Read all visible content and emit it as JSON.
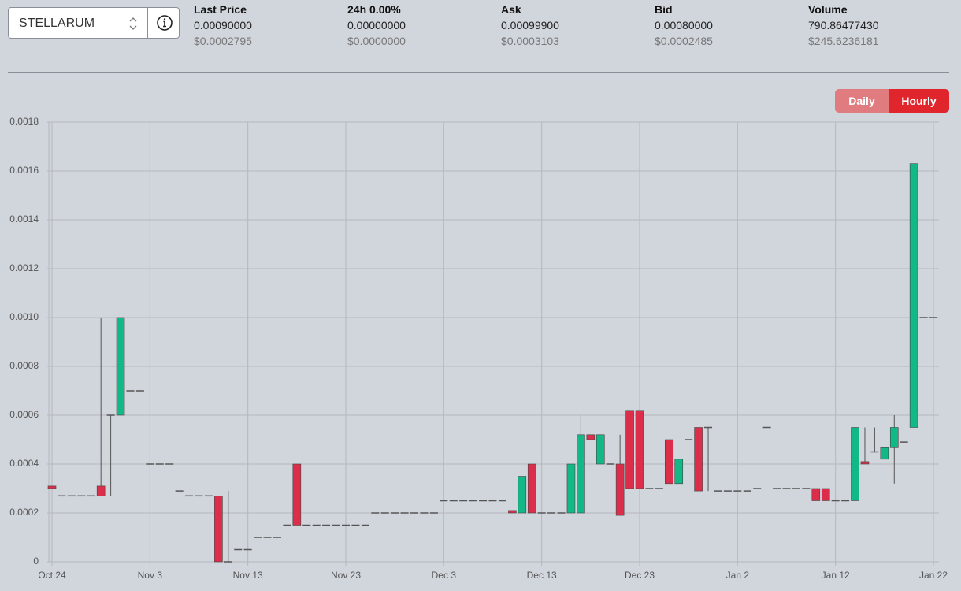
{
  "selector": "STELLARUM",
  "stats": [
    {
      "label": "Last Price",
      "value": "0.00090000",
      "usd": "$0.0002795"
    },
    {
      "label": "24h 0.00%",
      "value": "0.00000000",
      "usd": "$0.0000000"
    },
    {
      "label": "Ask",
      "value": "0.00099900",
      "usd": "$0.0003103"
    },
    {
      "label": "Bid",
      "value": "0.00080000",
      "usd": "$0.0002485"
    },
    {
      "label": "Volume",
      "value": "790.86477430",
      "usd": "$245.6236181"
    }
  ],
  "buttons": [
    "Daily",
    "Hourly"
  ],
  "chart_data": {
    "type": "candlestick",
    "categories": [
      "Oct 24",
      null,
      null,
      null,
      null,
      null,
      null,
      null,
      null,
      null,
      "Nov 3",
      null,
      null,
      null,
      null,
      null,
      null,
      null,
      null,
      null,
      "Nov 13",
      null,
      null,
      null,
      null,
      null,
      null,
      null,
      null,
      null,
      "Nov 23",
      null,
      null,
      null,
      null,
      null,
      null,
      null,
      null,
      null,
      "Dec 3",
      null,
      null,
      null,
      null,
      null,
      null,
      null,
      null,
      null,
      "Dec 13",
      null,
      null,
      null,
      null,
      null,
      null,
      null,
      null,
      null,
      "Dec 23",
      null,
      null,
      null,
      null,
      null,
      null,
      null,
      null,
      null,
      "Jan 2",
      null,
      null,
      null,
      null,
      null,
      null,
      null,
      null,
      null,
      "Jan 12",
      null,
      null,
      null,
      null,
      null,
      null,
      null,
      null,
      null,
      "Jan 22"
    ],
    "open": [
      0.00031,
      0.00027,
      0.00027,
      0.00027,
      0.00027,
      0.00031,
      0.0006,
      0.0006,
      0.0007,
      0.0007,
      0.0004,
      0.0004,
      0.0004,
      0.00029,
      0.00027,
      0.00027,
      0.00027,
      0.00027,
      0,
      5e-05,
      5e-05,
      0.0001,
      0.0001,
      0.0001,
      0.00015,
      0.0004,
      0.00015,
      0.00015,
      0.00015,
      0.00015,
      0.00015,
      0.00015,
      0.00015,
      0.0002,
      0.0002,
      0.0002,
      0.0002,
      0.0002,
      0.0002,
      0.0002,
      0.00025,
      0.00025,
      0.00025,
      0.00025,
      0.00025,
      0.00025,
      0.00025,
      0.00021,
      0.0002,
      0.0004,
      0.0002,
      0.0002,
      0.0002,
      0.0002,
      0.0002,
      0.00052,
      0.0004,
      0.0004,
      0.0004,
      0.00062,
      0.00062,
      0.0003,
      0.0003,
      0.0005,
      0.00032,
      0.0005,
      0.00055,
      0.00055,
      0.00029,
      0.00029,
      0.00029,
      0.00029,
      0.0003,
      0.00055,
      0.0003,
      0.0003,
      0.0003,
      0.0003,
      0.0003,
      0.0003,
      0.00025,
      0.00025,
      0.00025,
      0.00041,
      0.00045,
      0.00042,
      0.00047,
      0.00049,
      0.00055,
      0.001,
      0.001
    ],
    "high": [
      0.00031,
      0.00027,
      0.00027,
      0.00027,
      0.00027,
      0.001,
      0.0006,
      0.001,
      0.0007,
      0.0007,
      0.0004,
      0.0004,
      0.0004,
      0.00029,
      0.00027,
      0.00027,
      0.00027,
      0.00027,
      0.00029,
      5e-05,
      5e-05,
      0.0001,
      0.0001,
      0.0001,
      0.00015,
      0.0004,
      0.00015,
      0.00015,
      0.00015,
      0.00015,
      0.00015,
      0.00015,
      0.00015,
      0.0002,
      0.0002,
      0.0002,
      0.0002,
      0.0002,
      0.0002,
      0.0002,
      0.00025,
      0.00025,
      0.00025,
      0.00025,
      0.00025,
      0.00025,
      0.00025,
      0.00021,
      0.00035,
      0.0004,
      0.0002,
      0.0002,
      0.0002,
      0.0004,
      0.0006,
      0.00052,
      0.00052,
      0.0004,
      0.00052,
      0.00062,
      0.00062,
      0.0003,
      0.0003,
      0.0005,
      0.00042,
      0.0005,
      0.00055,
      0.00055,
      0.00029,
      0.00029,
      0.00029,
      0.00029,
      0.0003,
      0.00055,
      0.0003,
      0.0003,
      0.0003,
      0.0003,
      0.0003,
      0.0003,
      0.00025,
      0.00025,
      0.00055,
      0.00055,
      0.00055,
      0.00047,
      0.0006,
      0.00049,
      0.00163,
      0.001,
      0.001
    ],
    "low": [
      0.0003,
      0.00027,
      0.00027,
      0.00027,
      0.00027,
      0.00027,
      0.00027,
      0.0006,
      0.0007,
      0.0007,
      0.0004,
      0.0004,
      0.0004,
      0.00029,
      0.00027,
      0.00027,
      0.00027,
      0,
      0,
      5e-05,
      5e-05,
      0.0001,
      0.0001,
      0.0001,
      0.00015,
      0.00015,
      0.00015,
      0.00015,
      0.00015,
      0.00015,
      0.00015,
      0.00015,
      0.00015,
      0.0002,
      0.0002,
      0.0002,
      0.0002,
      0.0002,
      0.0002,
      0.0002,
      0.00025,
      0.00025,
      0.00025,
      0.00025,
      0.00025,
      0.00025,
      0.00025,
      0.0002,
      0.0002,
      0.0002,
      0.0002,
      0.0002,
      0.0002,
      0.0002,
      0.0002,
      0.0005,
      0.0004,
      0.0004,
      0.00019,
      0.0003,
      0.0003,
      0.0003,
      0.0003,
      0.00032,
      0.00032,
      0.0005,
      0.00029,
      0.00029,
      0.00029,
      0.00029,
      0.00029,
      0.00029,
      0.0003,
      0.00055,
      0.0003,
      0.0003,
      0.0003,
      0.0003,
      0.00025,
      0.00025,
      0.00025,
      0.00025,
      0.00025,
      0.0004,
      0.00045,
      0.00042,
      0.00032,
      0.00049,
      0.00055,
      0.001,
      0.001
    ],
    "close": [
      0.0003,
      0.00027,
      0.00027,
      0.00027,
      0.00027,
      0.00027,
      0.0006,
      0.001,
      0.0007,
      0.0007,
      0.0004,
      0.0004,
      0.0004,
      0.00029,
      0.00027,
      0.00027,
      0.00027,
      0,
      0,
      5e-05,
      5e-05,
      0.0001,
      0.0001,
      0.0001,
      0.00015,
      0.00015,
      0.00015,
      0.00015,
      0.00015,
      0.00015,
      0.00015,
      0.00015,
      0.00015,
      0.0002,
      0.0002,
      0.0002,
      0.0002,
      0.0002,
      0.0002,
      0.0002,
      0.00025,
      0.00025,
      0.00025,
      0.00025,
      0.00025,
      0.00025,
      0.00025,
      0.0002,
      0.00035,
      0.0002,
      0.0002,
      0.0002,
      0.0002,
      0.0004,
      0.00052,
      0.0005,
      0.00052,
      0.0004,
      0.00019,
      0.0003,
      0.0003,
      0.0003,
      0.0003,
      0.00032,
      0.00042,
      0.0005,
      0.00029,
      0.00055,
      0.00029,
      0.00029,
      0.00029,
      0.00029,
      0.0003,
      0.00055,
      0.0003,
      0.0003,
      0.0003,
      0.0003,
      0.00025,
      0.00025,
      0.00025,
      0.00025,
      0.00055,
      0.0004,
      0.00045,
      0.00047,
      0.00055,
      0.00049,
      0.00163,
      0.001,
      0.001
    ],
    "up_color": "#12b886",
    "down_color": "#dc2e4a",
    "flat_color": "#555555",
    "ylim": [
      0,
      0.0018
    ],
    "yticks": [
      0,
      0.0002,
      0.0004,
      0.0006,
      0.0008,
      {
        "value": 0.001,
        "label": "0.0010"
      },
      0.0012,
      0.0014,
      0.0016,
      0.0018
    ],
    "grid": true
  }
}
